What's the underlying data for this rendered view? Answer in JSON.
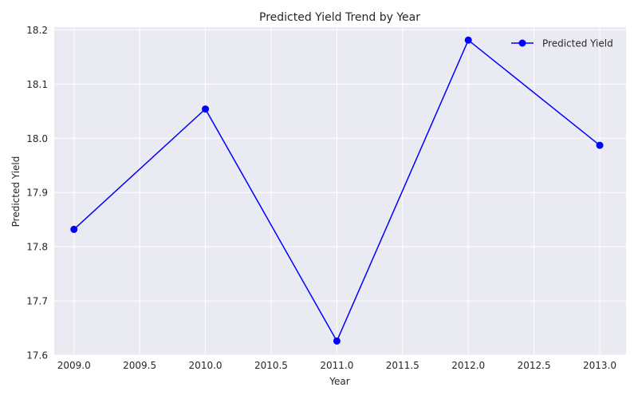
{
  "chart_data": {
    "type": "line",
    "title": "Predicted Yield Trend by Year",
    "xlabel": "Year",
    "ylabel": "Predicted Yield",
    "xlim": [
      2008.85,
      2013.2
    ],
    "ylim": [
      17.6,
      18.205
    ],
    "x_ticks": [
      2009.0,
      2009.5,
      2010.0,
      2010.5,
      2011.0,
      2011.5,
      2012.0,
      2012.5,
      2013.0
    ],
    "x_tick_labels": [
      "2009.0",
      "2009.5",
      "2010.0",
      "2010.5",
      "2011.0",
      "2011.5",
      "2012.0",
      "2012.5",
      "2013.0"
    ],
    "y_ticks": [
      17.6,
      17.7,
      17.8,
      17.9,
      18.0,
      18.1,
      18.2
    ],
    "y_tick_labels": [
      "17.6",
      "17.7",
      "17.8",
      "17.9",
      "18.0",
      "18.1",
      "18.2"
    ],
    "grid": true,
    "legend_position": "top-right",
    "series": [
      {
        "name": "Predicted Yield",
        "color": "#0000ff",
        "marker": "circle",
        "x": [
          2009,
          2010,
          2011,
          2012,
          2013
        ],
        "y": [
          17.832,
          18.054,
          17.626,
          18.181,
          17.987
        ]
      }
    ]
  }
}
